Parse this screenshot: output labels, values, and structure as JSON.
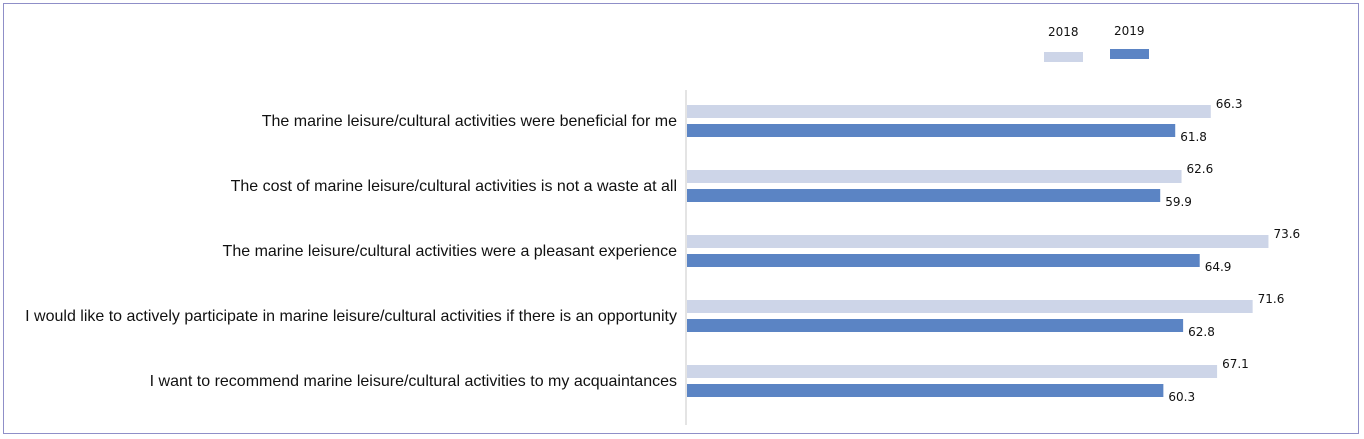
{
  "chart_data": {
    "type": "bar",
    "orientation": "horizontal",
    "categories": [
      "The marine leisure/cultural activities were beneficial for me",
      "The cost of marine leisure/cultural activities is not a waste at all",
      "The marine leisure/cultural activities were a pleasant experience",
      "I would like to actively participate in marine leisure/cultural activities if there is an opportunity",
      "I want to recommend marine leisure/cultural activities to my acquaintances"
    ],
    "series": [
      {
        "name": "2018",
        "color": "#cdd5e8",
        "values": [
          66.3,
          62.6,
          73.6,
          71.6,
          67.1
        ]
      },
      {
        "name": "2019",
        "color": "#5b84c4",
        "values": [
          61.8,
          59.9,
          64.9,
          62.8,
          60.3
        ]
      }
    ],
    "xlim": [
      0,
      80
    ],
    "grid": false,
    "legend_position": "top-right",
    "title": "",
    "xlabel": "",
    "ylabel": ""
  }
}
